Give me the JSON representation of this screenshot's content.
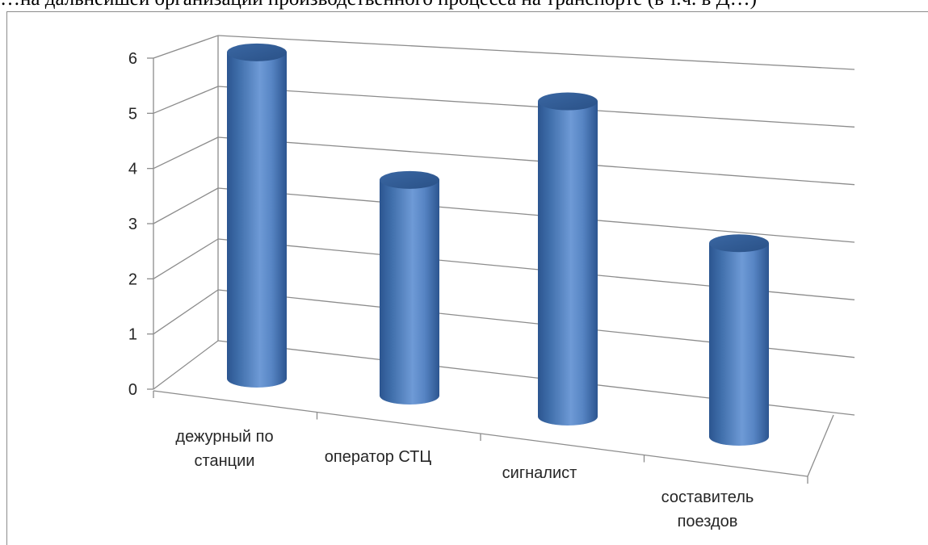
{
  "top_clipped_text": "…на дальнейшей организации производственного процесса на транспорте (в т.ч. в Д…)",
  "chart_data": {
    "type": "bar",
    "style": "3d-cylinder",
    "categories": [
      [
        "дежурный по",
        "станции"
      ],
      [
        "оператор СТЦ"
      ],
      [
        "сигналист"
      ],
      [
        "составитель",
        "поездов"
      ]
    ],
    "values": [
      5.9,
      3.9,
      5.7,
      3.5
    ],
    "ylim": [
      0,
      6
    ],
    "yticks": [
      "0",
      "1",
      "2",
      "3",
      "4",
      "5",
      "6"
    ],
    "grid": true,
    "legend": "none",
    "title": "",
    "xlabel": "",
    "ylabel": "",
    "colors": {
      "bar": "#4f81bd",
      "bar_dark": "#2c5590",
      "bar_light": "#8db3e2",
      "grid": "#8c8c8c",
      "text": "#262626"
    }
  }
}
